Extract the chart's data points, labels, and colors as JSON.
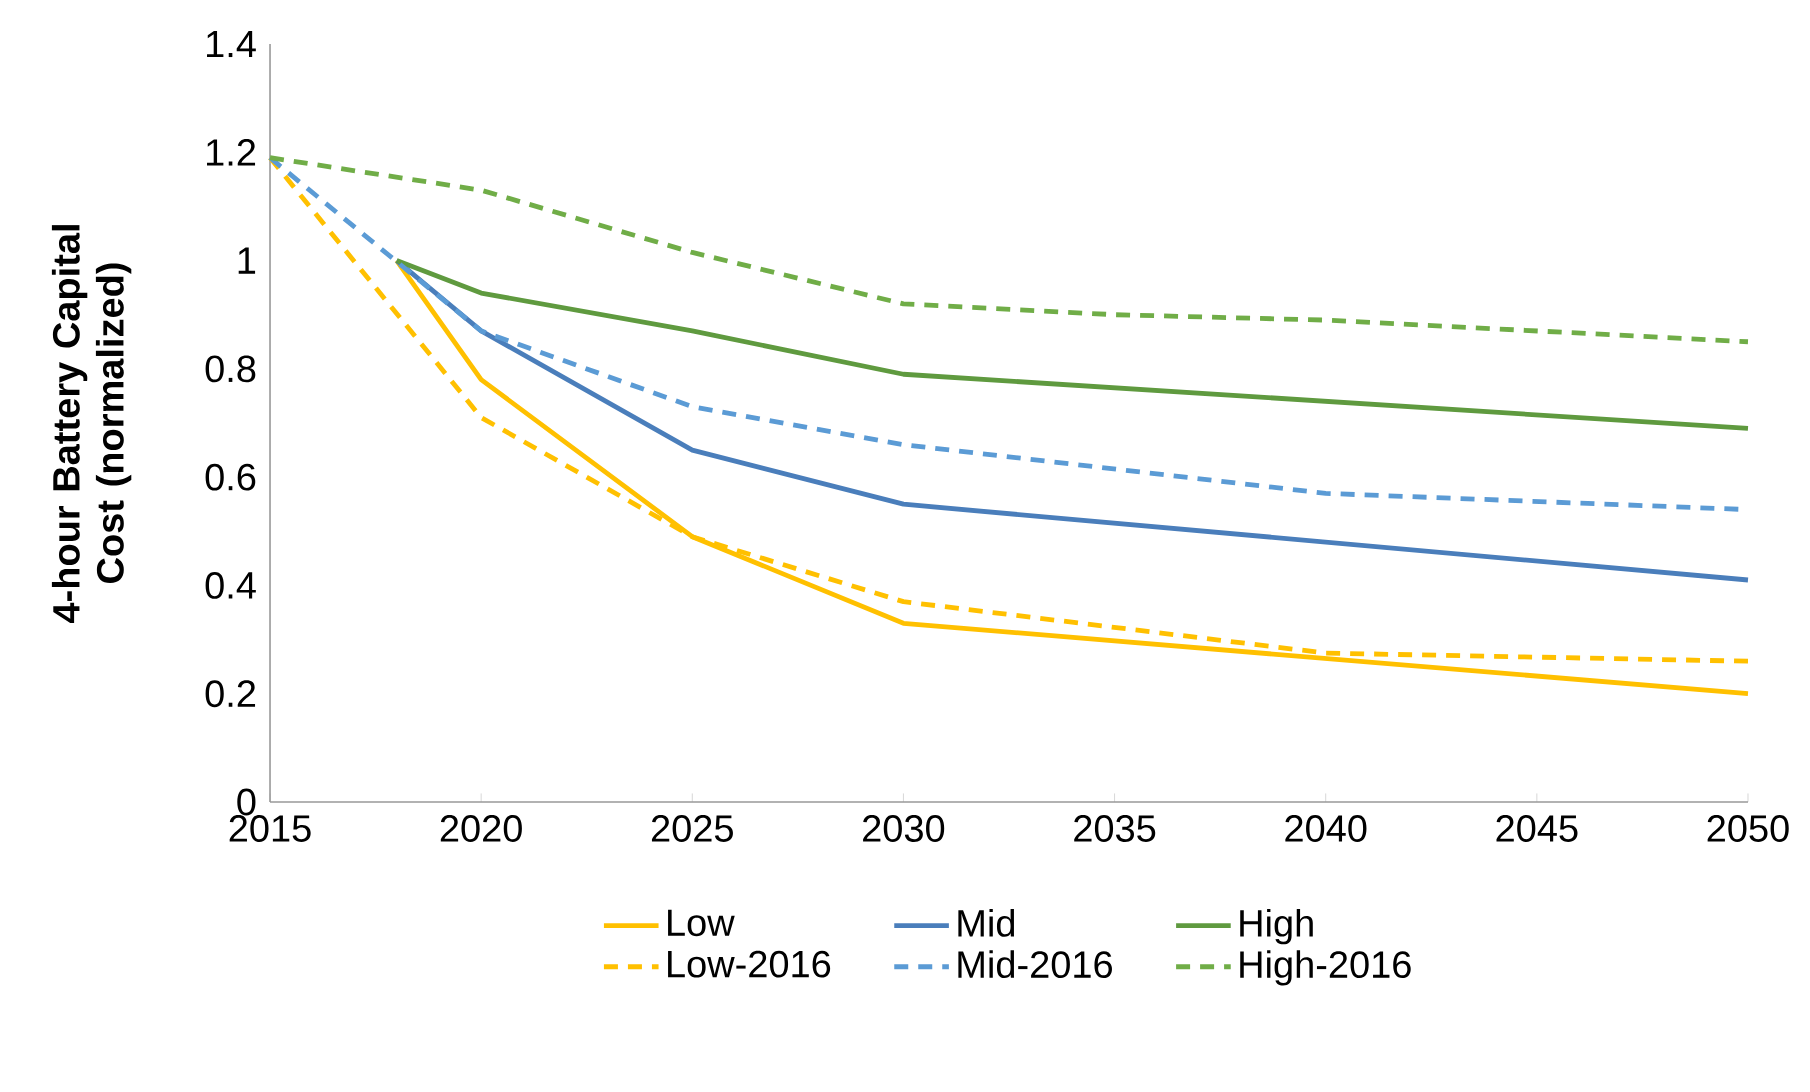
{
  "chart_data": {
    "type": "line",
    "ylabel": "4-hour Battery Capital Cost (normalized)",
    "xlim": [
      2015,
      2050
    ],
    "ylim": [
      0,
      1.4
    ],
    "xticks": [
      2015,
      2020,
      2025,
      2030,
      2035,
      2040,
      2045,
      2050
    ],
    "yticks": [
      0,
      0.2,
      0.4,
      0.6,
      0.8,
      1,
      1.2,
      1.4
    ],
    "grid": false,
    "legend": "bottom",
    "marker": "none",
    "series": [
      {
        "name": "Low",
        "color": "#ffc000",
        "line_style": "solid",
        "x": [
          2018,
          2020,
          2025,
          2030,
          2050
        ],
        "values": [
          1.0,
          0.78,
          0.49,
          0.33,
          0.2
        ]
      },
      {
        "name": "Mid",
        "color": "#4a7ebb",
        "line_style": "solid",
        "x": [
          2018,
          2020,
          2025,
          2030,
          2050
        ],
        "values": [
          1.0,
          0.87,
          0.65,
          0.55,
          0.41
        ]
      },
      {
        "name": "High",
        "color": "#5f9a3f",
        "line_style": "solid",
        "x": [
          2018,
          2020,
          2025,
          2030,
          2050
        ],
        "values": [
          1.0,
          0.94,
          0.87,
          0.79,
          0.69
        ]
      },
      {
        "name": "Low-2016",
        "color": "#ffc000",
        "line_style": "dashed",
        "x": [
          2015,
          2020,
          2025,
          2030,
          2040,
          2050
        ],
        "values": [
          1.19,
          0.71,
          0.49,
          0.37,
          0.275,
          0.26
        ]
      },
      {
        "name": "Mid-2016",
        "color": "#5b9bd5",
        "line_style": "dashed",
        "x": [
          2015,
          2020,
          2025,
          2030,
          2040,
          2050
        ],
        "values": [
          1.19,
          0.87,
          0.73,
          0.66,
          0.57,
          0.54
        ]
      },
      {
        "name": "High-2016",
        "color": "#70ad47",
        "line_style": "dashed",
        "x": [
          2015,
          2020,
          2025,
          2030,
          2035,
          2040,
          2050
        ],
        "values": [
          1.19,
          1.13,
          1.015,
          0.92,
          0.9,
          0.89,
          0.85
        ]
      }
    ]
  }
}
